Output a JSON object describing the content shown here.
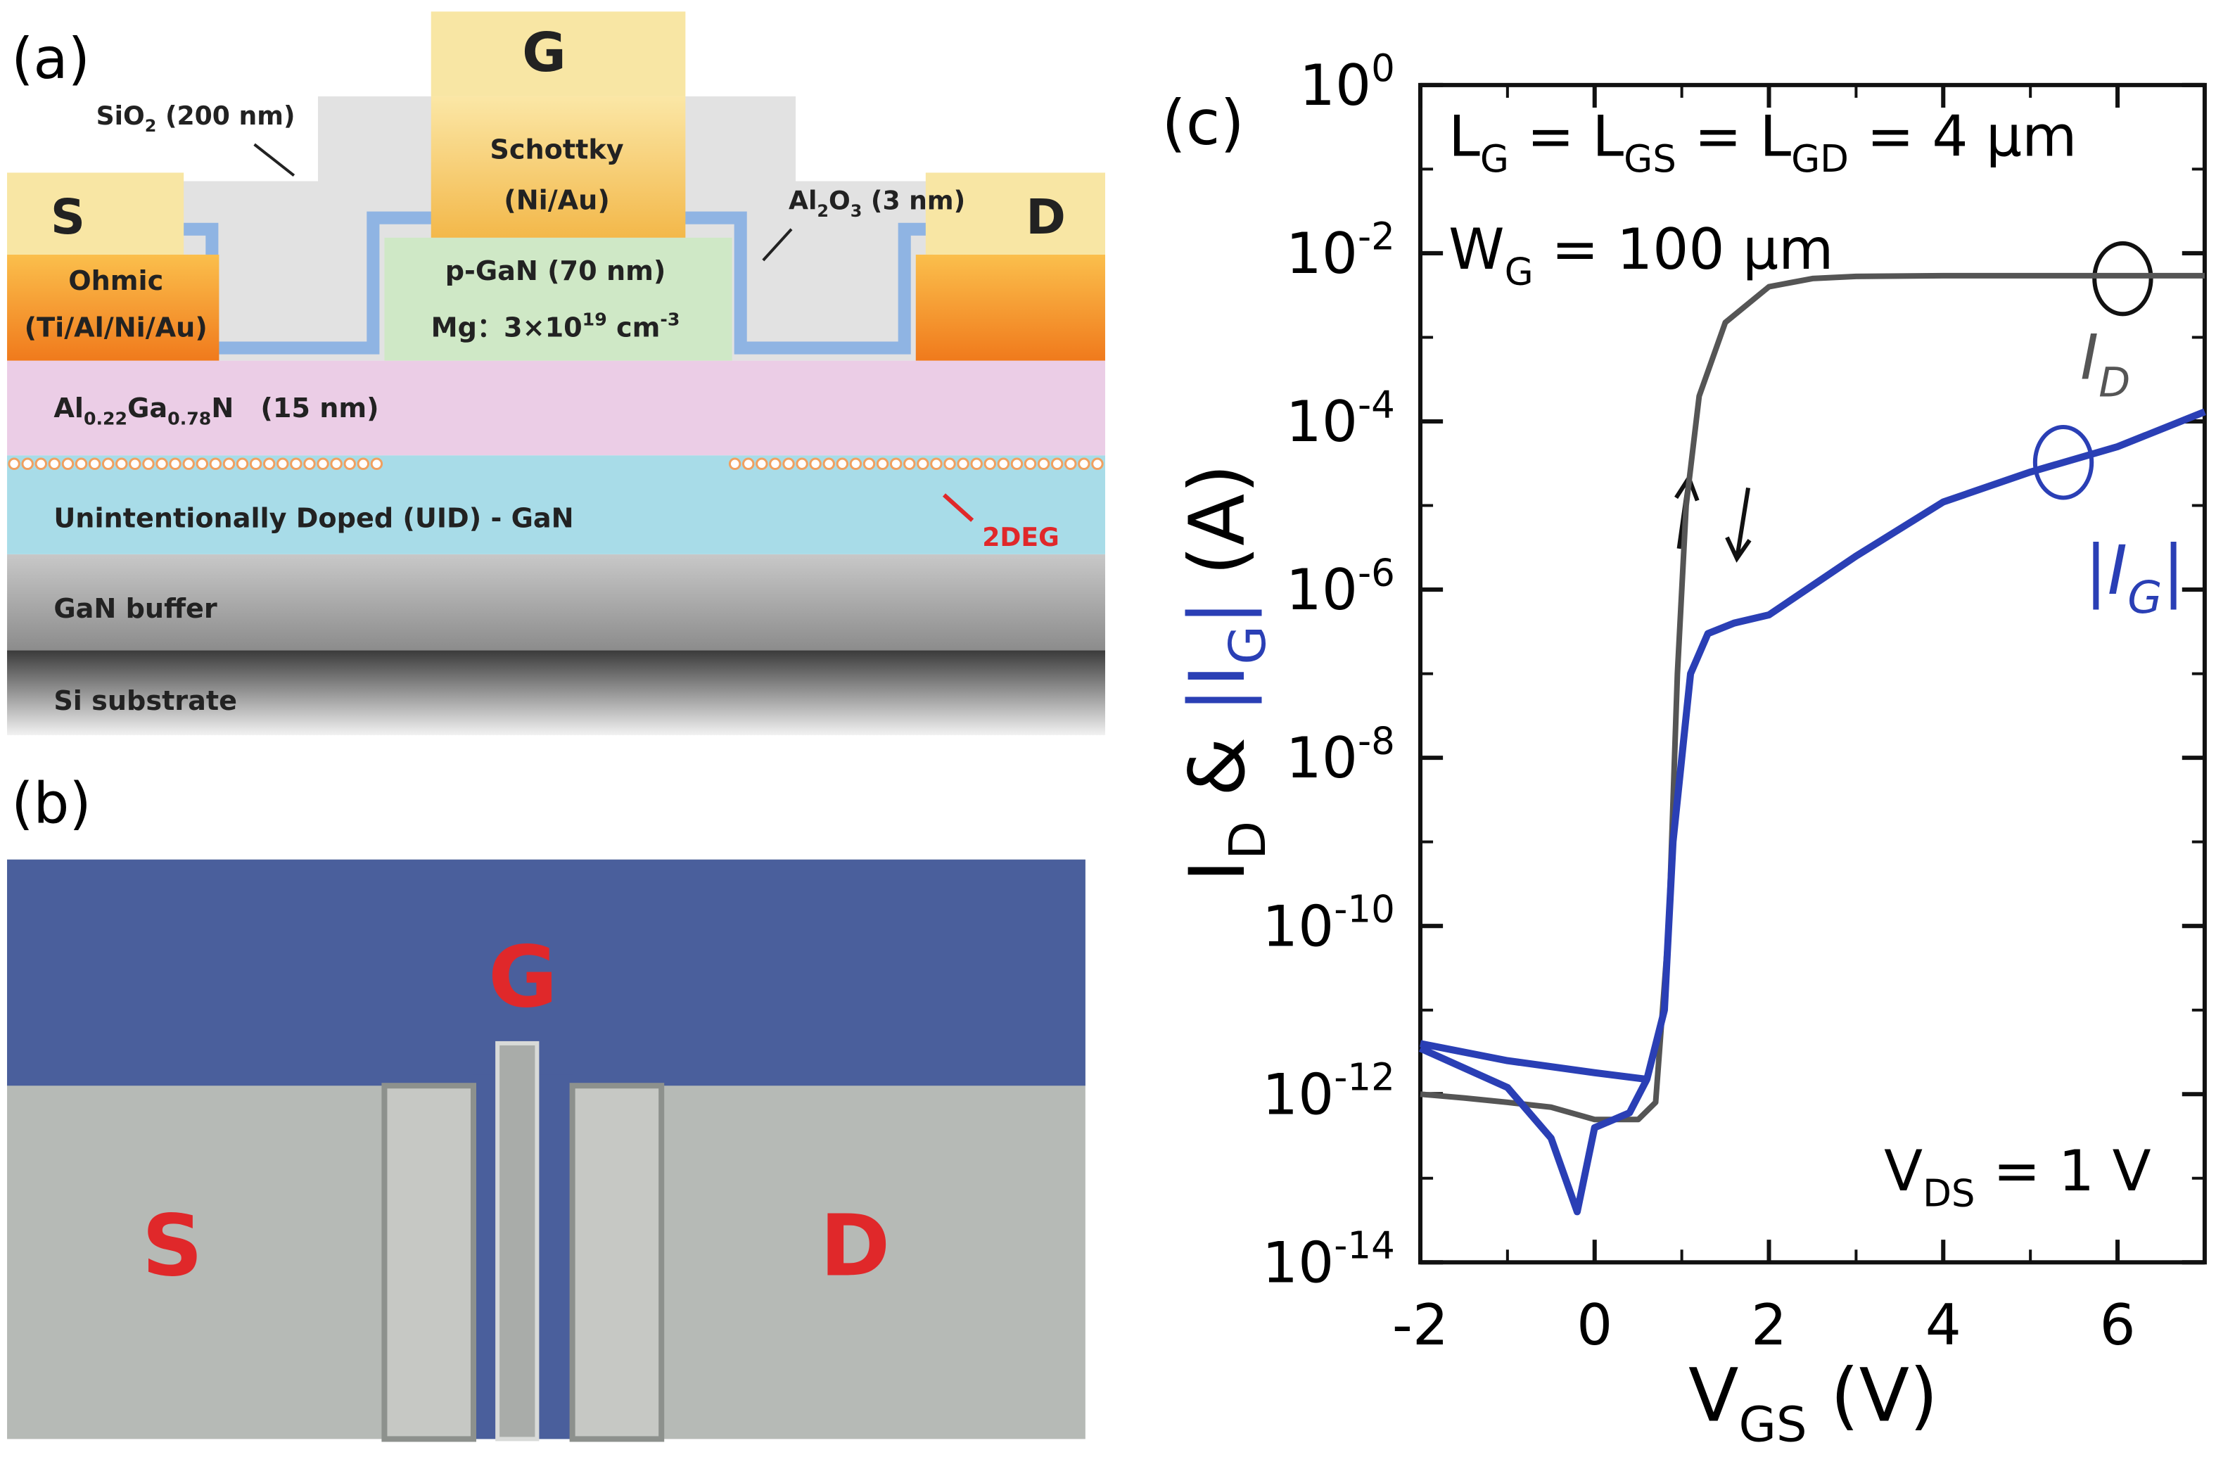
{
  "panel_a": {
    "label": "(a)",
    "gate": "G",
    "sio2": "SiO_{2} (200 nm)",
    "schottky": "Schottky",
    "schottky_metal": "(Ni/Au)",
    "source": "S",
    "ohmic": "Ohmic",
    "ohmic_metal": "(Ti/Al/Ni/Au)",
    "pgan": "p-GaN (70 nm)",
    "mg": "Mg：3×10^{19} cm^{-3}",
    "al2o3": "Al_{2}O_{3} (3 nm)",
    "drain": "D",
    "algan": "Al_{0.22}Ga_{0.78}N　(15 nm)",
    "uid": "Unintentionally Doped (UID) - GaN",
    "twodeg": "2DEG",
    "buffer": "GaN buffer",
    "substrate": "Si substrate"
  },
  "panel_b": {
    "label": "(b)",
    "gate": "G",
    "source": "S",
    "drain": "D"
  },
  "chart_data": {
    "type": "line",
    "panel_label": "(c)",
    "x_label": "V_{GS} (V)",
    "y_label": [
      "I_{D} & ",
      "|I_{G}|",
      " (A)"
    ],
    "annotations": [
      "L_{G} = L_{GS} = L_{GD} = 4 µm",
      "W_{G} = 100 µm",
      "V_{DS} = 1 V"
    ],
    "xlim": [
      -2,
      7
    ],
    "xticks": [
      -2,
      0,
      2,
      4,
      6
    ],
    "ylim": [
      1e-14,
      1
    ],
    "yscale": "log",
    "yticks": [
      {
        "value": 1e-14,
        "label": "10^{-14}"
      },
      {
        "value": 1e-12,
        "label": "10^{-12}"
      },
      {
        "value": 1e-10,
        "label": "10^{-10}"
      },
      {
        "value": 1e-08,
        "label": "10^{-8}"
      },
      {
        "value": 1e-06,
        "label": "10^{-6}"
      },
      {
        "value": 0.0001,
        "label": "10^{-4}"
      },
      {
        "value": 0.01,
        "label": "10^{-2}"
      },
      {
        "value": 1,
        "label": "10^{0}"
      }
    ],
    "series": [
      {
        "name": "I_{D}",
        "color": "#555555",
        "x": [
          -2,
          -1.5,
          -1,
          -0.5,
          0,
          0.5,
          0.7,
          0.85,
          0.95,
          1.05,
          1.2,
          1.5,
          2,
          2.5,
          3,
          4,
          5,
          6,
          7
        ],
        "values": [
          1e-12,
          9e-13,
          8e-13,
          7e-13,
          5e-13,
          5e-13,
          8e-13,
          1e-10,
          1e-07,
          1e-05,
          0.0002,
          0.0015,
          0.004,
          0.005,
          0.0053,
          0.0054,
          0.0054,
          0.0054,
          0.0054
        ]
      },
      {
        "name": "|I_{G}|",
        "color": "#2a3fb5",
        "x": [
          -2,
          -1,
          0,
          0.6,
          0.8,
          0.9,
          1.0,
          1.1,
          1.3,
          1.6,
          2,
          3,
          4,
          5,
          6,
          7,
          null,
          0.6,
          0.4,
          0,
          -0.2,
          -0.5,
          -1,
          -2
        ],
        "values": [
          4e-12,
          2.5e-12,
          1.8e-12,
          1.5e-12,
          1e-11,
          1e-09,
          1e-08,
          1e-07,
          3e-07,
          4e-07,
          5e-07,
          2.5e-06,
          1.1e-05,
          2.5e-05,
          5e-05,
          0.00013,
          null,
          1.5e-12,
          6e-13,
          4e-13,
          4e-14,
          3e-13,
          1.2e-12,
          3.5e-12
        ]
      }
    ]
  }
}
